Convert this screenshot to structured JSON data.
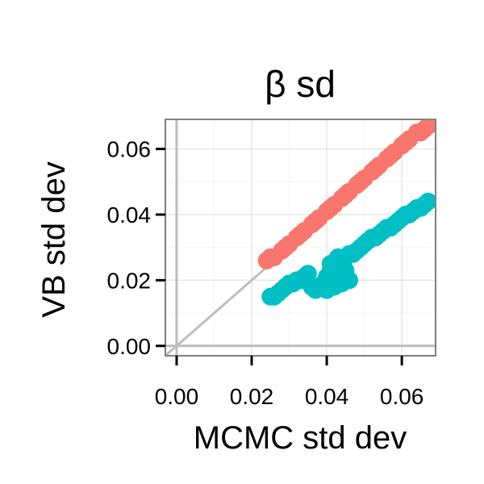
{
  "chart_data": {
    "type": "scatter",
    "title": "β   sd",
    "xlabel": "MCMC std dev",
    "ylabel": "VB std dev",
    "xlim": [
      -0.003,
      0.069
    ],
    "ylim": [
      -0.003,
      0.069
    ],
    "x_ticks": [
      0.0,
      0.02,
      0.04,
      0.06
    ],
    "y_ticks": [
      0.0,
      0.02,
      0.04,
      0.06
    ],
    "x_tick_labels": [
      "0.00",
      "0.02",
      "0.04",
      "0.06"
    ],
    "y_tick_labels": [
      "0.00",
      "0.02",
      "0.04",
      "0.06"
    ],
    "grid": true,
    "reference_line": "y = x",
    "legend": "none",
    "colors": {
      "series_a": "#F8766D",
      "series_b": "#00BFC4",
      "grid_major": "#e6e6e6",
      "grid_minor": "#f3f3f3",
      "reference": "#bdbdbd",
      "frame": "#7f7f7f"
    },
    "series": [
      {
        "color": "#F8766D",
        "x": [
          0.024,
          0.026,
          0.028,
          0.03,
          0.032,
          0.034,
          0.036,
          0.038,
          0.04,
          0.042,
          0.044,
          0.046,
          0.048,
          0.05,
          0.052,
          0.054,
          0.056,
          0.058,
          0.06,
          0.062,
          0.064,
          0.066,
          0.067,
          0.025,
          0.029,
          0.033,
          0.037,
          0.041,
          0.045,
          0.049,
          0.053,
          0.057,
          0.061,
          0.065
        ],
        "y": [
          0.026,
          0.027,
          0.029,
          0.031,
          0.033,
          0.035,
          0.037,
          0.039,
          0.041,
          0.043,
          0.045,
          0.047,
          0.049,
          0.051,
          0.053,
          0.055,
          0.057,
          0.059,
          0.061,
          0.063,
          0.065,
          0.066,
          0.067,
          0.027,
          0.03,
          0.034,
          0.038,
          0.042,
          0.046,
          0.05,
          0.054,
          0.058,
          0.062,
          0.065
        ]
      },
      {
        "color": "#00BFC4",
        "x": [
          0.025,
          0.026,
          0.027,
          0.028,
          0.029,
          0.03,
          0.031,
          0.032,
          0.033,
          0.034,
          0.035,
          0.036,
          0.037,
          0.038,
          0.039,
          0.04,
          0.041,
          0.042,
          0.043,
          0.044,
          0.045,
          0.046,
          0.047,
          0.048,
          0.049,
          0.05,
          0.051,
          0.052,
          0.053,
          0.054,
          0.055,
          0.056,
          0.057,
          0.058,
          0.059,
          0.06,
          0.061,
          0.062,
          0.063,
          0.064,
          0.065,
          0.066,
          0.067,
          0.04,
          0.042,
          0.044,
          0.046,
          0.043,
          0.045,
          0.041
        ],
        "y": [
          0.015,
          0.015,
          0.016,
          0.017,
          0.018,
          0.019,
          0.019,
          0.02,
          0.02,
          0.021,
          0.022,
          0.018,
          0.017,
          0.018,
          0.019,
          0.021,
          0.023,
          0.024,
          0.025,
          0.026,
          0.027,
          0.028,
          0.028,
          0.029,
          0.03,
          0.031,
          0.032,
          0.033,
          0.033,
          0.034,
          0.035,
          0.036,
          0.036,
          0.037,
          0.038,
          0.039,
          0.04,
          0.04,
          0.041,
          0.042,
          0.042,
          0.043,
          0.044,
          0.017,
          0.018,
          0.019,
          0.02,
          0.027,
          0.023,
          0.025
        ]
      }
    ]
  }
}
